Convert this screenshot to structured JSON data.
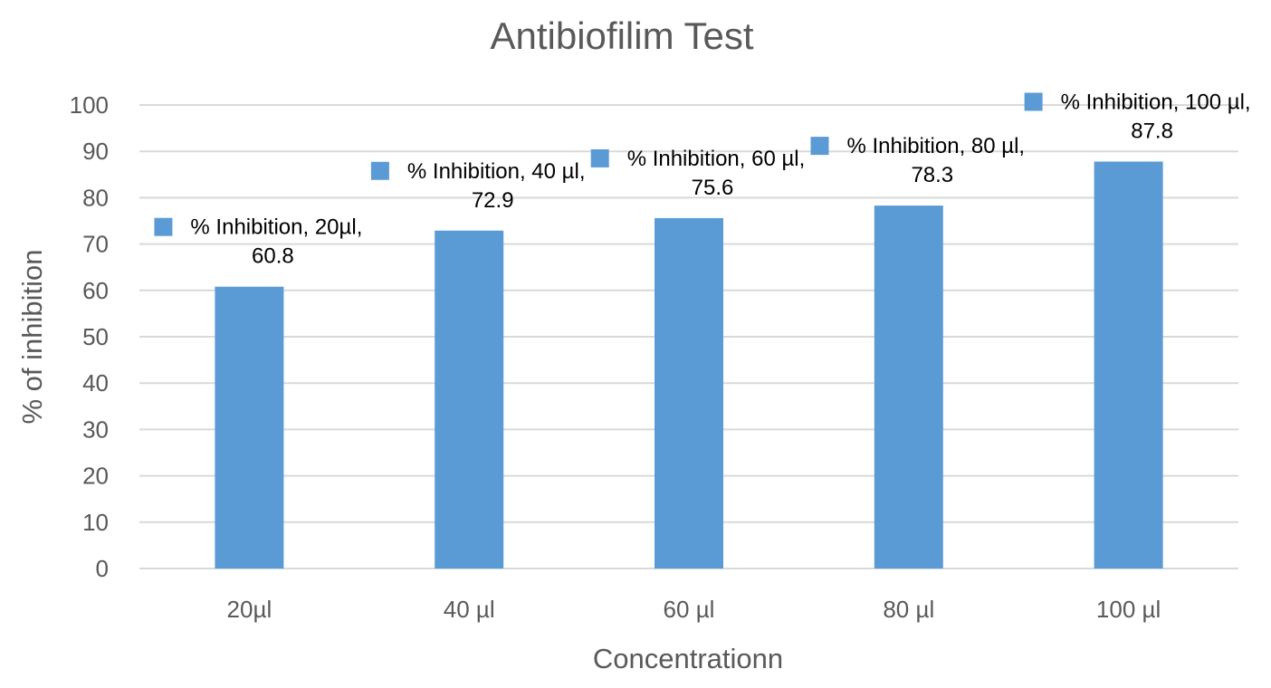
{
  "chart_data": {
    "type": "bar",
    "title": "Antibiofilim Test",
    "xlabel": "Concentrationn",
    "ylabel": "% of  inhibition",
    "categories": [
      "20µl",
      "40 µl",
      "60 µl",
      "80 µl",
      "100 µl"
    ],
    "series": [
      {
        "values": [
          60.8,
          72.9,
          75.6,
          78.3,
          87.8
        ],
        "color": "#5b9bd5"
      }
    ],
    "data_labels": [
      [
        "% Inhibition, 20µl,",
        "60.8"
      ],
      [
        "% Inhibition, 40 µl,",
        "72.9"
      ],
      [
        "% Inhibition, 60 µl,",
        "75.6"
      ],
      [
        "% Inhibition, 80 µl,",
        "78.3"
      ],
      [
        "% Inhibition, 100 µl,",
        "87.8"
      ]
    ],
    "ylim": [
      0,
      100
    ],
    "yticks": [
      0,
      10,
      20,
      30,
      40,
      50,
      60,
      70,
      80,
      90,
      100
    ],
    "grid": true,
    "legend": "none"
  }
}
